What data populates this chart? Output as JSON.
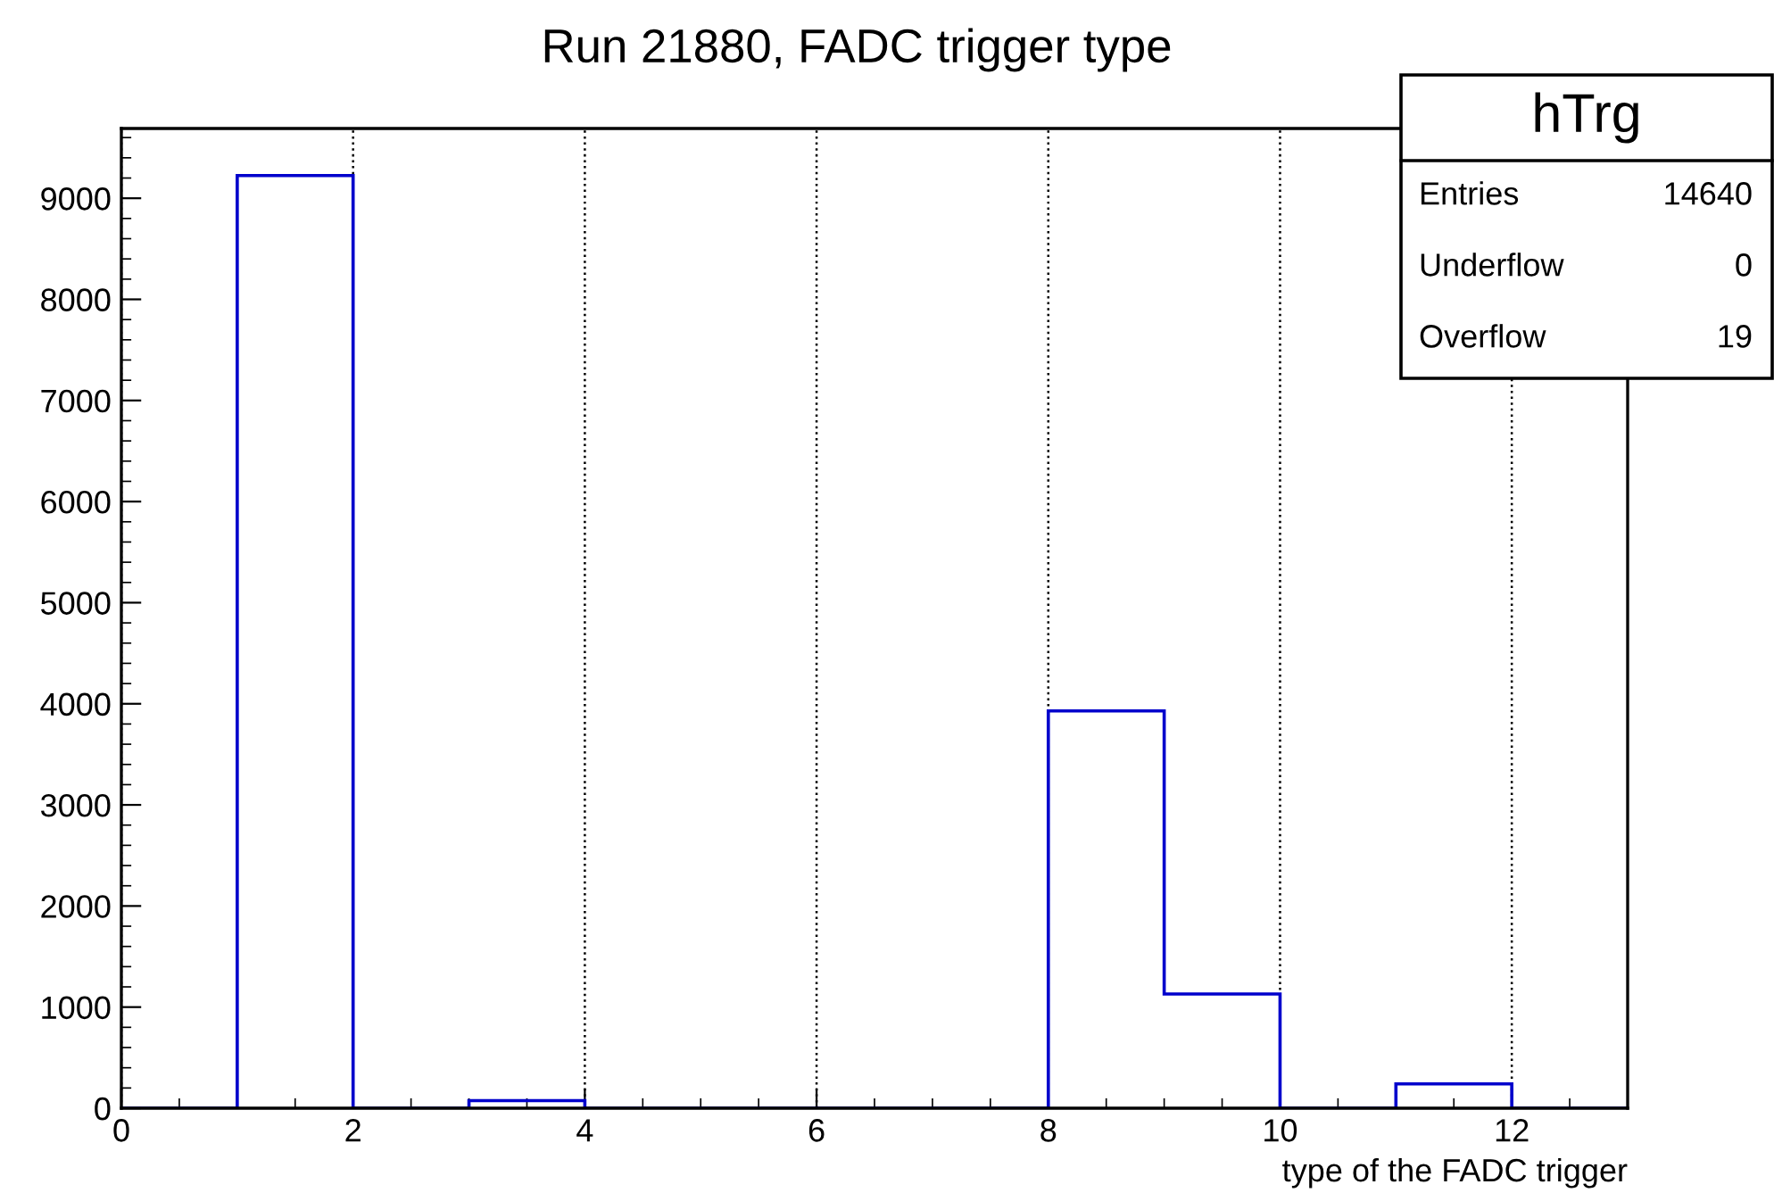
{
  "chart_data": {
    "type": "histogram",
    "title": "Run 21880, FADC trigger type",
    "xlabel": "type of the FADC trigger",
    "bins": [
      0,
      1,
      2,
      3,
      4,
      5,
      6,
      7,
      8,
      9,
      10,
      11,
      12,
      13
    ],
    "values": [
      0,
      9225,
      0,
      75,
      0,
      0,
      0,
      0,
      3930,
      1130,
      0,
      240,
      0
    ],
    "color": "#0000cc",
    "xlim": [
      0,
      13
    ],
    "xticks": [
      0,
      2,
      4,
      6,
      8,
      10,
      12
    ],
    "ylim": [
      0,
      9690
    ],
    "yticks": [
      0,
      1000,
      2000,
      3000,
      4000,
      5000,
      6000,
      7000,
      8000,
      9000
    ],
    "grid": "x",
    "annotations": [
      "hTrg",
      "Entries",
      "14640",
      "Underflow",
      "0",
      "Overflow",
      "19"
    ]
  }
}
